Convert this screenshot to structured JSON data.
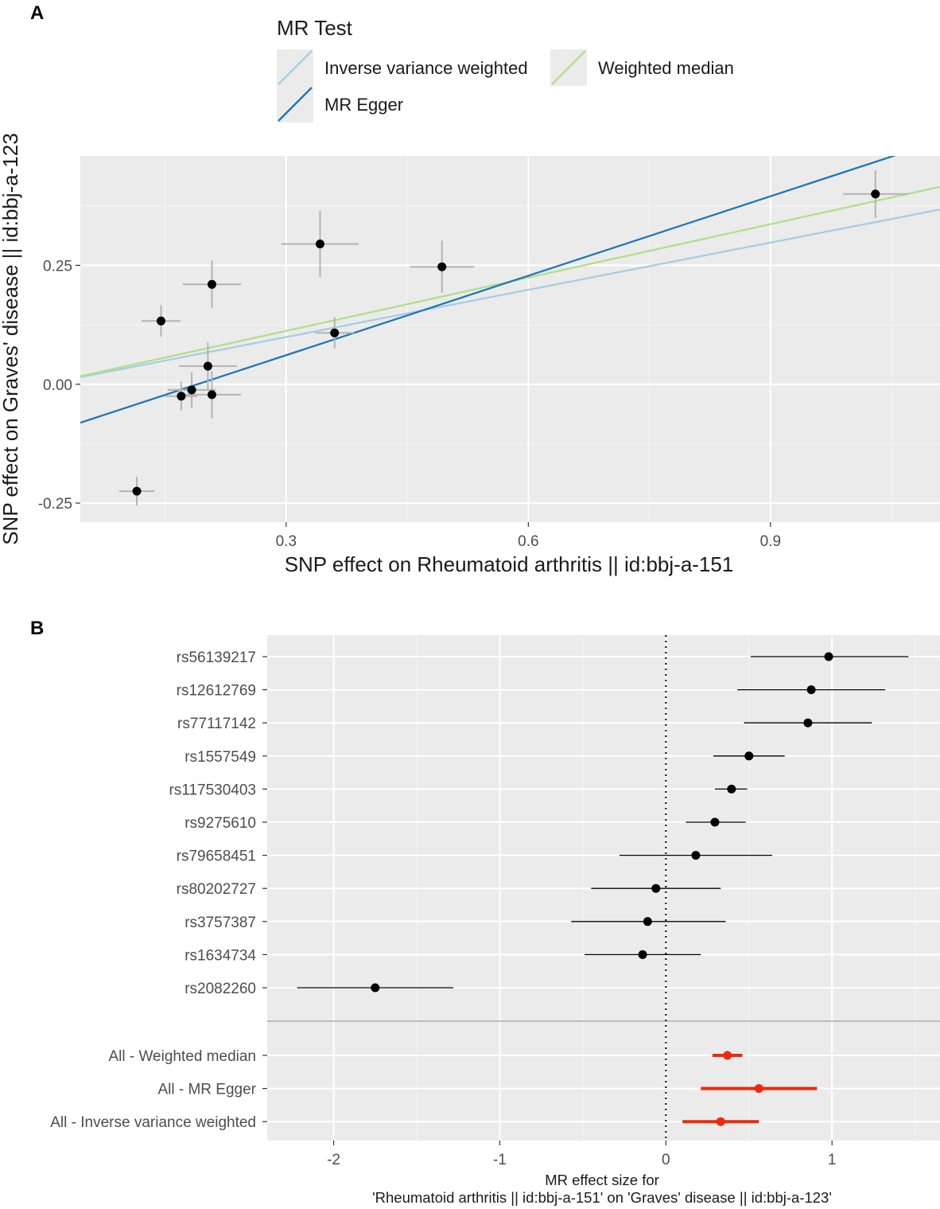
{
  "panels": {
    "a": "A",
    "b": "B"
  },
  "chart_data": [
    {
      "type": "scatter",
      "panel": "A",
      "xlabel": "SNP effect on Rheumatoid arthritis || id:bbj-a-151",
      "ylabel": "SNP effect on Graves' disease || id:bbj-a-123",
      "xlim": [
        0.045,
        1.11
      ],
      "ylim": [
        -0.29,
        0.48
      ],
      "xticks": [
        0.3,
        0.6,
        0.9
      ],
      "xtick_labels": [
        "0.3",
        "0.6",
        "0.9"
      ],
      "yticks": [
        -0.25,
        0.0,
        0.25
      ],
      "ytick_labels": [
        "-0.25",
        "0.00",
        "0.25"
      ],
      "grid": true,
      "legend": {
        "title": "MR Test",
        "position": "top",
        "entries": [
          {
            "label": "Inverse variance weighted",
            "color": "#a6cee3"
          },
          {
            "label": "Weighted median",
            "color": "#b2df8a"
          },
          {
            "label": "MR Egger",
            "color": "#1f78b4"
          }
        ]
      },
      "points": [
        {
          "x": 1.03,
          "y": 0.4,
          "xerr": 0.04,
          "yerr": 0.05
        },
        {
          "x": 0.342,
          "y": 0.295,
          "xerr": 0.048,
          "yerr": 0.07
        },
        {
          "x": 0.493,
          "y": 0.247,
          "xerr": 0.04,
          "yerr": 0.055
        },
        {
          "x": 0.208,
          "y": 0.21,
          "xerr": 0.036,
          "yerr": 0.05
        },
        {
          "x": 0.145,
          "y": 0.133,
          "xerr": 0.024,
          "yerr": 0.033
        },
        {
          "x": 0.36,
          "y": 0.108,
          "xerr": 0.024,
          "yerr": 0.033
        },
        {
          "x": 0.203,
          "y": 0.038,
          "xerr": 0.036,
          "yerr": 0.05
        },
        {
          "x": 0.183,
          "y": -0.012,
          "xerr": 0.03,
          "yerr": 0.037
        },
        {
          "x": 0.17,
          "y": -0.025,
          "xerr": 0.02,
          "yerr": 0.03
        },
        {
          "x": 0.208,
          "y": -0.022,
          "xerr": 0.036,
          "yerr": 0.05
        },
        {
          "x": 0.115,
          "y": -0.225,
          "xerr": 0.022,
          "yerr": 0.03
        }
      ],
      "lines": [
        {
          "name": "Inverse variance weighted",
          "intercept": 0.0,
          "slope": 0.331,
          "color": "#a6cee3"
        },
        {
          "name": "Weighted median",
          "intercept": 0.0,
          "slope": 0.374,
          "color": "#b2df8a"
        },
        {
          "name": "MR Egger",
          "intercept": -0.106,
          "slope": 0.557,
          "color": "#1f78b4"
        }
      ]
    },
    {
      "type": "forest",
      "panel": "B",
      "xlabel_line1": "MR effect size for",
      "xlabel_line2": "'Rheumatoid arthritis || id:bbj-a-151' on 'Graves' disease || id:bbj-a-123'",
      "xlim": [
        -2.4,
        1.65
      ],
      "xticks": [
        -2,
        -1,
        0,
        1
      ],
      "xtick_labels": [
        "-2",
        "-1",
        "0",
        "1"
      ],
      "reference_line": 0,
      "grid": true,
      "snps": [
        {
          "label": "rs56139217",
          "est": 0.98,
          "lo": 0.51,
          "hi": 1.46
        },
        {
          "label": "rs12612769",
          "est": 0.875,
          "lo": 0.43,
          "hi": 1.32
        },
        {
          "label": "rs77117142",
          "est": 0.855,
          "lo": 0.47,
          "hi": 1.24
        },
        {
          "label": "rs1557549",
          "est": 0.5,
          "lo": 0.285,
          "hi": 0.715
        },
        {
          "label": "rs117530403",
          "est": 0.395,
          "lo": 0.295,
          "hi": 0.49
        },
        {
          "label": "rs9275610",
          "est": 0.295,
          "lo": 0.12,
          "hi": 0.48
        },
        {
          "label": "rs79658451",
          "est": 0.18,
          "lo": -0.28,
          "hi": 0.64
        },
        {
          "label": "rs80202727",
          "est": -0.06,
          "lo": -0.45,
          "hi": 0.33
        },
        {
          "label": "rs3757387",
          "est": -0.11,
          "lo": -0.57,
          "hi": 0.36
        },
        {
          "label": "rs1634734",
          "est": -0.14,
          "lo": -0.49,
          "hi": 0.21
        },
        {
          "label": "rs2082260",
          "est": -1.75,
          "lo": -2.22,
          "hi": -1.28
        }
      ],
      "summary": [
        {
          "label": "All - Weighted median",
          "est": 0.37,
          "lo": 0.28,
          "hi": 0.46,
          "color": "#ee2a0b"
        },
        {
          "label": "All - MR Egger",
          "est": 0.56,
          "lo": 0.21,
          "hi": 0.91,
          "color": "#ee2a0b"
        },
        {
          "label": "All - Inverse variance weighted",
          "est": 0.33,
          "lo": 0.1,
          "hi": 0.56,
          "color": "#ee2a0b"
        }
      ]
    }
  ]
}
